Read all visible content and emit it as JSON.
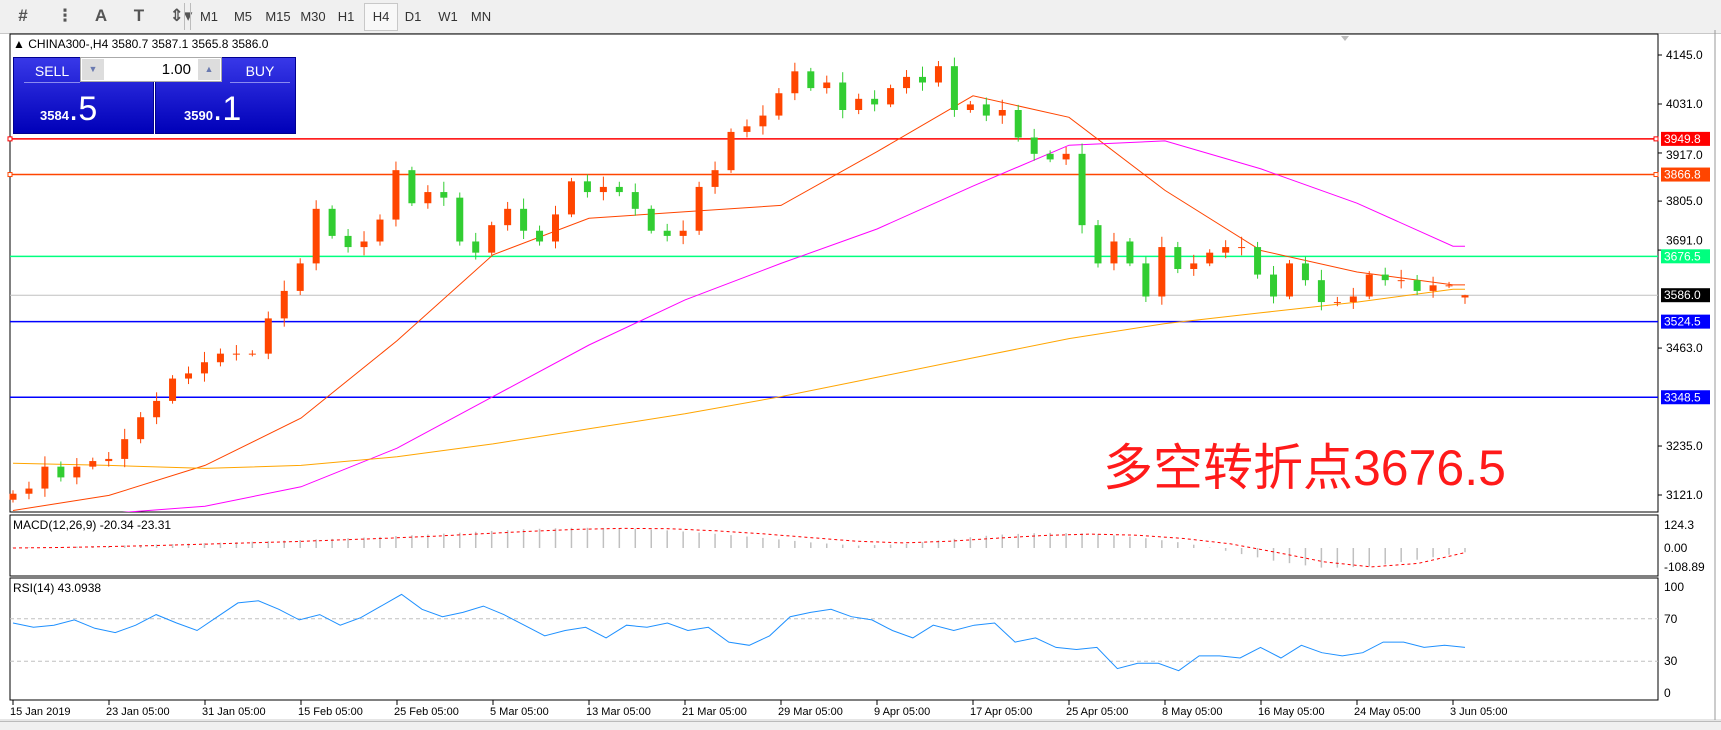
{
  "toolbar": {
    "icons": [
      "fibonacci-expansion-icon",
      "fibonacci-fan-icon",
      "text-icon",
      "text-label-icon",
      "arrows-dropdown-icon"
    ],
    "icon_glyphs": [
      "#",
      "⋮",
      "A",
      "T",
      "⇕"
    ],
    "timeframes": [
      "M1",
      "M5",
      "M15",
      "M30",
      "H1",
      "H4",
      "D1",
      "W1",
      "MN"
    ],
    "selected_timeframe": "H4"
  },
  "chart": {
    "header": "CHINA300-,H4  3580.7 3587.1 3565.8 3586.0",
    "symbol": "CHINA300-",
    "sell_label": "SELL",
    "buy_label": "BUY",
    "lot": "1.00",
    "sell_price_main": "3584",
    "sell_price_frac": ".5",
    "buy_price_main": "3590",
    "buy_price_frac": ".1",
    "annotation": "多空转折点3676.5"
  },
  "chart_data": [
    {
      "type": "candlestick",
      "ylim": [
        3100,
        4180
      ],
      "price_ticks": [
        "4145.0",
        "4031.0",
        "3917.0",
        "3805.0",
        "3691.0",
        "3463.0",
        "3235.0",
        "3121.0"
      ],
      "x_ticks": [
        "15 Jan 2019",
        "23 Jan 05:00",
        "31 Jan 05:00",
        "15 Feb 05:00",
        "25 Feb 05:00",
        "5 Mar 05:00",
        "13 Mar 05:00",
        "21 Mar 05:00",
        "29 Mar 05:00",
        "9 Apr 05:00",
        "17 Apr 05:00",
        "25 Apr 05:00",
        "8 May 05:00",
        "16 May 05:00",
        "24 May 05:00",
        "3 Jun 05:00"
      ],
      "closes": [
        3124,
        3136,
        3187,
        3162,
        3187,
        3200,
        3205,
        3251,
        3302,
        3340,
        3392,
        3404,
        3430,
        3450,
        3450,
        3450,
        3532,
        3596,
        3660,
        3787,
        3724,
        3698,
        3711,
        3762,
        3877,
        3800,
        3826,
        3813,
        3711,
        3685,
        3749,
        3787,
        3736,
        3711,
        3774,
        3851,
        3826,
        3838,
        3826,
        3787,
        3736,
        3724,
        3736,
        3838,
        3877,
        3966,
        3979,
        4004,
        4056,
        4107,
        4068,
        4081,
        4017,
        4043,
        4030,
        4068,
        4094,
        4081,
        4119,
        4017,
        4030,
        4004,
        4017,
        3953,
        3915,
        3902,
        3915,
        3749,
        3660,
        3711,
        3660,
        3583,
        3698,
        3647,
        3660,
        3685,
        3698,
        3698,
        3634,
        3583,
        3660,
        3621,
        3570,
        3570,
        3583,
        3634,
        3621,
        3621,
        3596,
        3609,
        3609,
        3586
      ],
      "last_ohlc": {
        "open": 3580.7,
        "high": 3587.1,
        "low": 3565.8,
        "close": 3586.0
      },
      "up_color": "#ff4500",
      "down_color": "#32cd32",
      "moving_averages": [
        {
          "color": "#ff4500",
          "values_at_ticks": [
            3085,
            3120,
            3190,
            3300,
            3480,
            3680,
            3765,
            3780,
            3795,
            3920,
            4050,
            4000,
            3830,
            3690,
            3640,
            3610
          ]
        },
        {
          "color": "#ff00ff",
          "values_at_ticks": [
            3075,
            3078,
            3095,
            3140,
            3230,
            3350,
            3470,
            3575,
            3660,
            3740,
            3840,
            3935,
            3945,
            3880,
            3800,
            3700
          ]
        },
        {
          "color": "#ffa500",
          "values_at_ticks": [
            3195,
            3190,
            3183,
            3190,
            3210,
            3240,
            3275,
            3310,
            3350,
            3395,
            3440,
            3485,
            3520,
            3545,
            3570,
            3600
          ]
        }
      ],
      "horizontal_lines": [
        {
          "price": 3949.8,
          "label": "3949.8",
          "color": "#ff0000"
        },
        {
          "price": 3866.8,
          "label": "3866.8",
          "color": "#ff4500"
        },
        {
          "price": 3676.5,
          "label": "3676.5",
          "color": "#00ff7f"
        },
        {
          "price": 3586.0,
          "label": "3586.0",
          "color": "#c0c0c0",
          "label_bg": "#000000"
        },
        {
          "price": 3524.5,
          "label": "3524.5",
          "color": "#0000ff"
        },
        {
          "price": 3348.5,
          "label": "3348.5",
          "color": "#0000ff"
        }
      ]
    },
    {
      "type": "bar",
      "title": "MACD(12,26,9) -20.34 -23.31",
      "params": "12,26,9",
      "macd": -20.34,
      "signal": -23.31,
      "ylim": [
        -108.89,
        124.3
      ],
      "y_ticks": [
        "124.3",
        "0.00",
        "-108.89"
      ],
      "histogram": [
        2,
        6,
        12,
        20,
        28,
        36,
        46,
        56,
        68,
        82,
        98,
        112,
        120,
        118,
        104,
        84,
        60,
        34,
        14,
        22,
        52,
        78,
        90,
        86,
        64,
        30,
        -20,
        -70,
        -104,
        -96,
        -60,
        -22
      ],
      "signal_line": [
        0,
        3,
        8,
        14,
        22,
        30,
        38,
        48,
        58,
        70,
        84,
        98,
        110,
        116,
        114,
        102,
        84,
        62,
        40,
        30,
        40,
        58,
        74,
        82,
        76,
        56,
        24,
        -24,
        -72,
        -98,
        -80,
        -24
      ],
      "histogram_color": "#c0c0c0",
      "signal_color": "#ff0000"
    },
    {
      "type": "line",
      "title": "RSI(14) 43.0938",
      "period": 14,
      "value": 43.0938,
      "ylim": [
        0,
        100
      ],
      "y_ticks": [
        "100",
        "70",
        "30",
        "0"
      ],
      "levels": [
        70,
        30
      ],
      "values": [
        66,
        62,
        64,
        69,
        61,
        57,
        64,
        74,
        66,
        59,
        72,
        85,
        87,
        79,
        69,
        74,
        64,
        71,
        82,
        93,
        79,
        72,
        76,
        82,
        74,
        64,
        54,
        59,
        62,
        52,
        64,
        62,
        66,
        59,
        62,
        48,
        45,
        54,
        72,
        76,
        79,
        72,
        69,
        59,
        52,
        64,
        59,
        64,
        66,
        48,
        52,
        43,
        41,
        43,
        23,
        28,
        28,
        21,
        35,
        35,
        33,
        43,
        33,
        45,
        38,
        35,
        38,
        48,
        48,
        43,
        45,
        43
      ],
      "color": "#1e90ff"
    }
  ]
}
